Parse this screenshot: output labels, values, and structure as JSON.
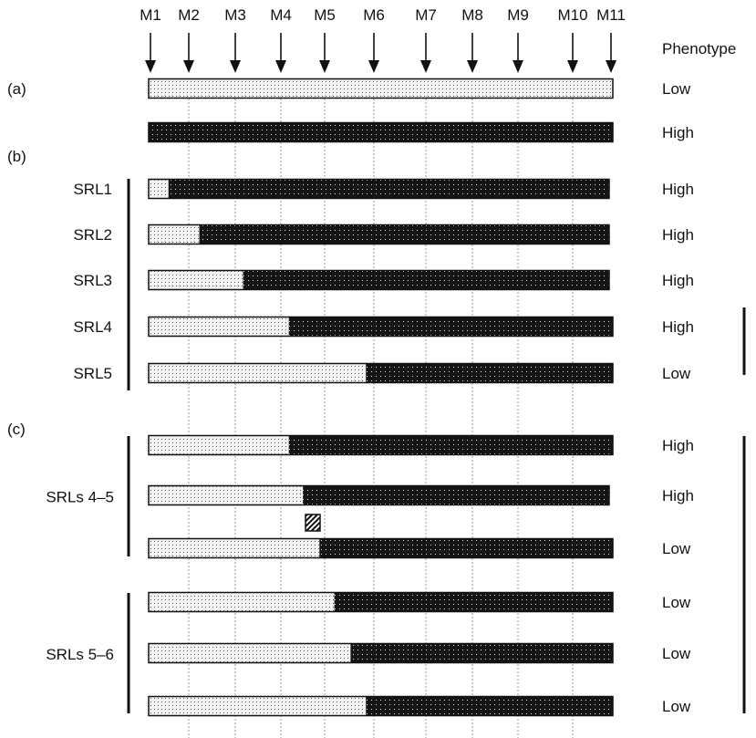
{
  "markers": [
    "M1",
    "M2",
    "M3",
    "M4",
    "M5",
    "M6",
    "M7",
    "M8",
    "M9",
    "M10",
    "M11"
  ],
  "phenotype_header": "Phenotype",
  "section_labels": {
    "a": "(a)",
    "b": "(b)",
    "c": "(c)"
  },
  "colors": {
    "low_fill": "#f4f4f4",
    "high_fill": "#141414",
    "outline": "#111111",
    "dashed_line": "#9a9a9a"
  },
  "parent_rows": [
    {
      "low_fraction": 1.0,
      "phenotype": "Low"
    },
    {
      "low_fraction": 0.0,
      "phenotype": "High"
    }
  ],
  "srl_rows": [
    {
      "label": "SRL1",
      "low_fraction": 0.043,
      "phenotype": "High"
    },
    {
      "label": "SRL2",
      "low_fraction": 0.11,
      "phenotype": "High"
    },
    {
      "label": "SRL3",
      "low_fraction": 0.205,
      "phenotype": "High"
    },
    {
      "label": "SRL4",
      "low_fraction": 0.302,
      "phenotype": "High"
    },
    {
      "label": "SRL5",
      "low_fraction": 0.468,
      "phenotype": "Low"
    }
  ],
  "sub_groups": [
    {
      "label": "SRLs 4–5",
      "rows": [
        {
          "low_fraction": 0.302,
          "phenotype": "High"
        },
        {
          "low_fraction": 0.335,
          "phenotype": "High"
        },
        {
          "low_fraction": 0.368,
          "phenotype": "Low"
        }
      ]
    },
    {
      "label": "SRLs 5–6",
      "rows": [
        {
          "low_fraction": 0.4,
          "phenotype": "Low"
        },
        {
          "low_fraction": 0.435,
          "phenotype": "Low"
        },
        {
          "low_fraction": 0.468,
          "phenotype": "Low"
        }
      ]
    }
  ]
}
